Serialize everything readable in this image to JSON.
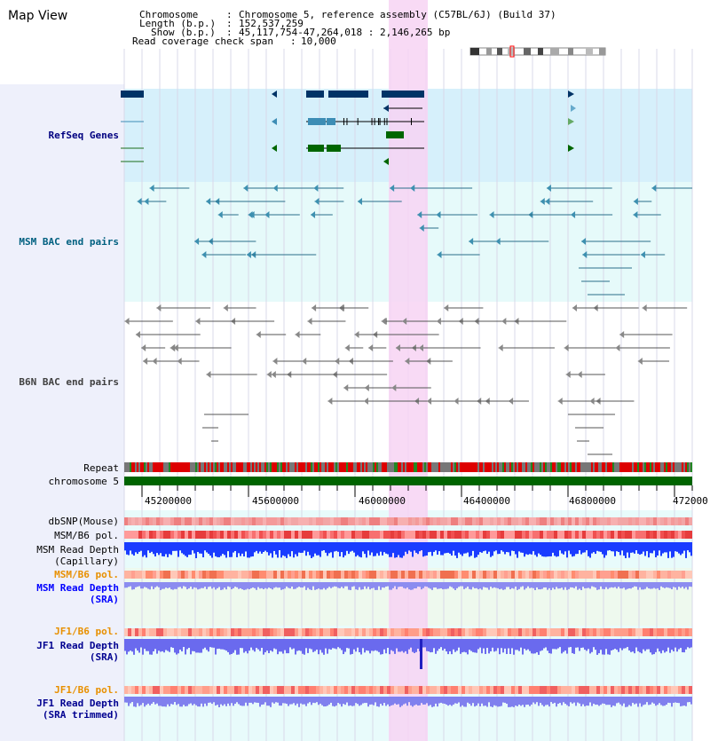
{
  "title": "Map View",
  "info": {
    "chromosome_label": "Chromosome",
    "chromosome_value": "Chromosome 5, reference assembly (C57BL/6J) (Build 37)",
    "length_label": "Length (b.p.)",
    "length_value": "152,537,259",
    "show_label": "Show (b.p.)",
    "show_value": "45,117,754-47,264,018 : 2,146,265 bp",
    "coverage_label": "Read coverage check span",
    "coverage_value": "10,000",
    "separator": ":"
  },
  "tracks": {
    "refseq": "RefSeq Genes",
    "msm_bac": "MSM BAC end pairs",
    "b6n_bac": "B6N BAC end pairs",
    "repeat": "Repeat",
    "chromosome": "chromosome 5",
    "dbsnp": "dbSNP(Mouse)",
    "msm_b6_pol_cap": "MSM/B6 pol.",
    "msm_depth_cap_1": "MSM Read Depth",
    "msm_depth_cap_2": "(Capillary)",
    "msm_b6_pol_sra": "MSM/B6 pol.",
    "msm_depth_sra_1": "MSM Read Depth",
    "msm_depth_sra_2": "(SRA)",
    "jf1_b6_pol_sra": "JF1/B6 pol.",
    "jf1_depth_sra_1": "JF1 Read Depth",
    "jf1_depth_sra_2": "(SRA)",
    "jf1_b6_pol_trim": "JF1/B6 pol.",
    "jf1_depth_trim_1": "JF1 Read Depth",
    "jf1_depth_trim_2": "(SRA trimmed)"
  },
  "axis_ticks": [
    "45200000",
    "45600000",
    "46000000",
    "46400000",
    "46800000",
    "472000"
  ],
  "colors": {
    "refseq_bg": "#d6f0fb",
    "bac_bg": "#e6fafa",
    "highlight": "#f7d3f3",
    "chromosome_bar": "#006400",
    "refseq_label": "#000080",
    "msm_label": "#006080",
    "b6n_label": "#404040",
    "pol_orange": "#e89000",
    "depth_blue": "#0000ff",
    "depth_navy": "#000090"
  }
}
